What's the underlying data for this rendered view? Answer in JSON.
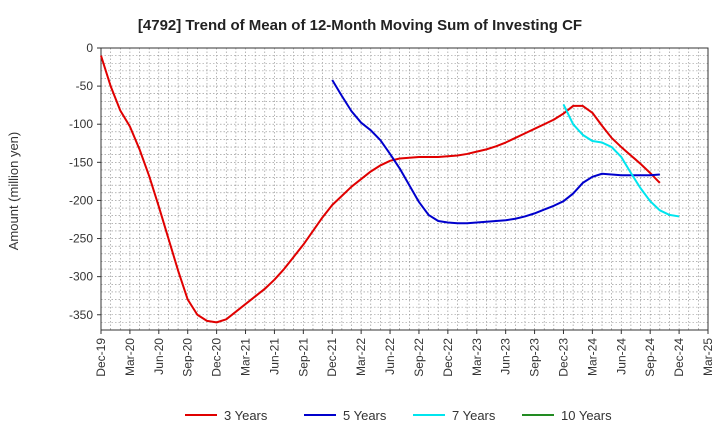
{
  "chart_data": {
    "type": "line",
    "title": "[4792]  Trend of Mean of 12-Month Moving Sum of Investing CF",
    "xlabel": "",
    "ylabel": "Amount (million yen)",
    "x_ticks": [
      "Dec-19",
      "Mar-20",
      "Jun-20",
      "Sep-20",
      "Dec-20",
      "Mar-21",
      "Jun-21",
      "Sep-21",
      "Dec-21",
      "Mar-22",
      "Jun-22",
      "Sep-22",
      "Dec-22",
      "Mar-23",
      "Jun-23",
      "Sep-23",
      "Dec-23",
      "Mar-24",
      "Jun-24",
      "Sep-24",
      "Dec-24",
      "Mar-25"
    ],
    "ylim": [
      -370,
      0
    ],
    "y_ticks": [
      0,
      -50,
      -100,
      -150,
      -200,
      -250,
      -300,
      -350
    ],
    "grid": true,
    "legend_position": "bottom",
    "series": [
      {
        "name": "3 Years",
        "color": "#e00000",
        "start_month": 0,
        "values": [
          -10,
          -50,
          -82,
          -103,
          -133,
          -168,
          -208,
          -250,
          -292,
          -330,
          -350,
          -358,
          -360,
          -356,
          -346,
          -336,
          -326,
          -316,
          -304,
          -290,
          -274,
          -258,
          -240,
          -222,
          -206,
          -194,
          -182,
          -172,
          -162,
          -154,
          -148,
          -145,
          -144,
          -143,
          -143,
          -143,
          -142,
          -141,
          -139,
          -136,
          -133,
          -129,
          -124,
          -118,
          -112,
          -106,
          -100,
          -94,
          -86,
          -76,
          -76,
          -85,
          -102,
          -118,
          -130,
          -141,
          -152,
          -164,
          -177
        ]
      },
      {
        "name": "5 Years",
        "color": "#0000cc",
        "start_month": 24,
        "values": [
          -42,
          -63,
          -83,
          -98,
          -108,
          -121,
          -139,
          -158,
          -180,
          -202,
          -219,
          -227,
          -229,
          -230,
          -230,
          -229,
          -228,
          -227,
          -226,
          -224,
          -221,
          -217,
          -212,
          -207,
          -201,
          -191,
          -177,
          -169,
          -165,
          -166,
          -167,
          -167,
          -167,
          -167,
          -166
        ]
      },
      {
        "name": "7 Years",
        "color": "#00e5ee",
        "start_month": 48,
        "values": [
          -74,
          -100,
          -114,
          -122,
          -124,
          -130,
          -143,
          -164,
          -184,
          -201,
          -213,
          -219,
          -221
        ]
      },
      {
        "name": "10 Years",
        "color": "#228b22",
        "start_month": 0,
        "values": []
      }
    ]
  }
}
